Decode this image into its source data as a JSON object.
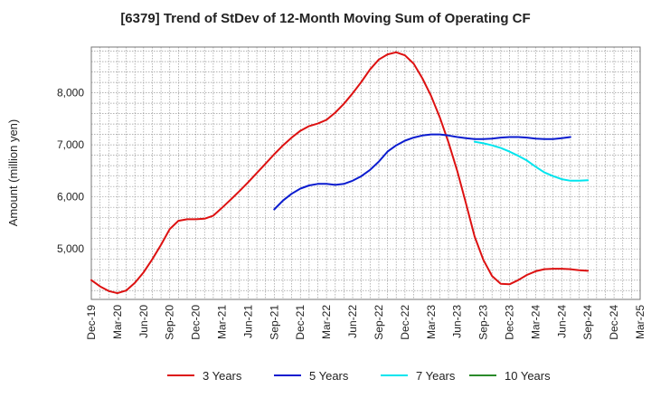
{
  "chart_data": {
    "type": "line",
    "title": "[6379]  Trend of StDev of 12-Month Moving Sum of Operating CF",
    "ylabel": "Amount (million yen)",
    "xlabel": "",
    "ylim": [
      4030,
      8880
    ],
    "y_ticks": [
      5000,
      6000,
      7000,
      8000
    ],
    "y_tick_labels": [
      "5,000",
      "6,000",
      "7,000",
      "8,000"
    ],
    "x_range": [
      "2019-12",
      "2025-03"
    ],
    "x_tick_labels": [
      "Dec-19",
      "Mar-20",
      "Jun-20",
      "Sep-20",
      "Dec-20",
      "Mar-21",
      "Jun-21",
      "Sep-21",
      "Dec-21",
      "Mar-22",
      "Jun-22",
      "Sep-22",
      "Dec-22",
      "Mar-23",
      "Jun-23",
      "Sep-23",
      "Dec-23",
      "Mar-24",
      "Jun-24",
      "Sep-24",
      "Dec-24",
      "Mar-25"
    ],
    "grid": true,
    "legend_position": "bottom",
    "series": [
      {
        "name": "3 Years",
        "color": "#dd1111",
        "start": "2019-12",
        "values": [
          4400,
          4280,
          4190,
          4150,
          4200,
          4350,
          4550,
          4800,
          5080,
          5380,
          5540,
          5570,
          5570,
          5580,
          5640,
          5790,
          5950,
          6110,
          6280,
          6460,
          6640,
          6820,
          6990,
          7140,
          7270,
          7360,
          7410,
          7480,
          7620,
          7790,
          7990,
          8210,
          8450,
          8640,
          8740,
          8780,
          8720,
          8560,
          8280,
          7940,
          7530,
          7050,
          6500,
          5880,
          5240,
          4790,
          4480,
          4330,
          4320,
          4400,
          4500,
          4570,
          4610,
          4620,
          4620,
          4610,
          4590,
          4580
        ]
      },
      {
        "name": "5 Years",
        "color": "#0b1ccf",
        "start": "2021-09",
        "values": [
          5760,
          5930,
          6060,
          6160,
          6220,
          6250,
          6250,
          6230,
          6250,
          6310,
          6400,
          6520,
          6680,
          6870,
          6990,
          7080,
          7140,
          7180,
          7200,
          7200,
          7180,
          7150,
          7130,
          7110,
          7110,
          7120,
          7140,
          7150,
          7150,
          7140,
          7120,
          7110,
          7110,
          7130,
          7150
        ]
      },
      {
        "name": "7 Years",
        "color": "#00e5ee",
        "start": "2023-08",
        "values": [
          7060,
          7030,
          6990,
          6940,
          6870,
          6790,
          6700,
          6580,
          6470,
          6400,
          6340,
          6310,
          6310,
          6320
        ]
      },
      {
        "name": "10 Years",
        "color": "#2a8a2a",
        "start": "2023-08",
        "values": []
      }
    ]
  }
}
